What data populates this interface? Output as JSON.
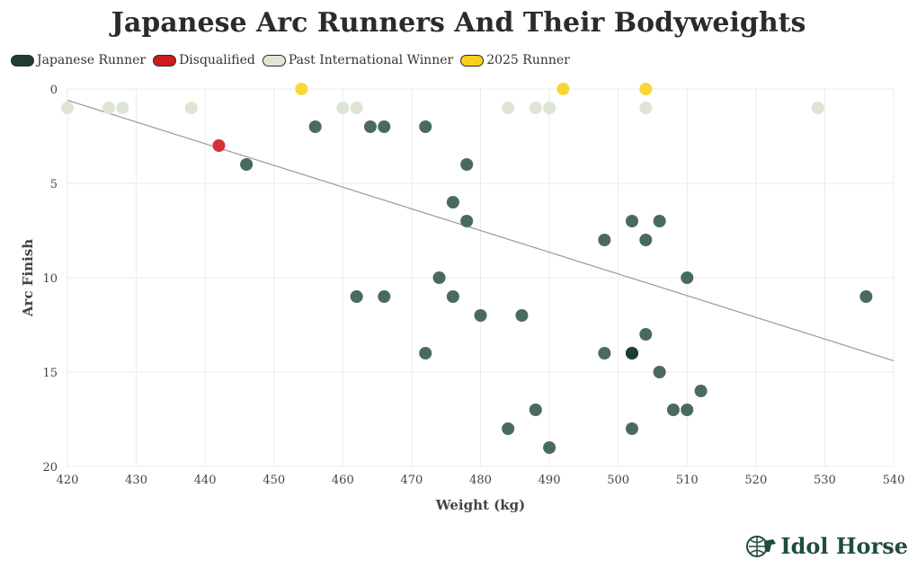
{
  "chart_data": {
    "type": "scatter",
    "title": "Japanese Arc Runners And Their Bodyweights",
    "xlabel": "Weight (kg)",
    "ylabel": "Arc Finish",
    "xlim": [
      420,
      540
    ],
    "ylim": [
      20,
      0
    ],
    "x_ticks": [
      420,
      430,
      440,
      450,
      460,
      470,
      480,
      490,
      500,
      510,
      520,
      530,
      540
    ],
    "y_ticks": [
      0,
      5,
      10,
      15,
      20
    ],
    "grid": true,
    "legend_position": "top-left",
    "series": [
      {
        "name": "Japanese Runner",
        "color": "#4b6a5f",
        "legend_color": "#1f3d33",
        "points": [
          [
            456,
            2
          ],
          [
            464,
            2
          ],
          [
            466,
            2
          ],
          [
            472,
            2
          ],
          [
            446,
            4
          ],
          [
            478,
            4
          ],
          [
            476,
            6
          ],
          [
            478,
            7
          ],
          [
            502,
            7
          ],
          [
            506,
            7
          ],
          [
            498,
            8
          ],
          [
            504,
            8
          ],
          [
            474,
            10
          ],
          [
            510,
            10
          ],
          [
            462,
            11
          ],
          [
            466,
            11
          ],
          [
            476,
            11
          ],
          [
            536,
            11
          ],
          [
            480,
            12
          ],
          [
            486,
            12
          ],
          [
            504,
            13
          ],
          [
            472,
            14
          ],
          [
            498,
            14
          ],
          [
            502,
            14
          ],
          [
            506,
            15
          ],
          [
            512,
            16
          ],
          [
            488,
            17
          ],
          [
            508,
            17
          ],
          [
            510,
            17
          ],
          [
            484,
            18
          ],
          [
            502,
            18
          ],
          [
            490,
            19
          ]
        ]
      },
      {
        "name": "Disqualified",
        "color": "#d6303a",
        "legend_color": "#cc1a1f",
        "points": [
          [
            442,
            3
          ]
        ]
      },
      {
        "name": "Past International Winner",
        "color": "#dde5d4",
        "legend_color": "#dfe6d4",
        "points": [
          [
            420,
            1
          ],
          [
            426,
            1
          ],
          [
            428,
            1
          ],
          [
            438,
            1
          ],
          [
            460,
            1
          ],
          [
            462,
            1
          ],
          [
            484,
            1
          ],
          [
            488,
            1
          ],
          [
            490,
            1
          ],
          [
            504,
            1
          ],
          [
            529,
            1
          ]
        ]
      },
      {
        "name": "2025 Runner",
        "color": "#f7d735",
        "legend_color": "#f7d01e",
        "points": [
          [
            454,
            0
          ],
          [
            492,
            0
          ],
          [
            504,
            0
          ]
        ]
      }
    ],
    "highlight_point": {
      "x": 502,
      "y": 14,
      "color": "#1f3d33"
    },
    "trendline": {
      "color": "#999999",
      "x": [
        420,
        540
      ],
      "y": [
        0.6,
        14.4
      ]
    }
  },
  "brand": {
    "name": "Idol Horse"
  }
}
